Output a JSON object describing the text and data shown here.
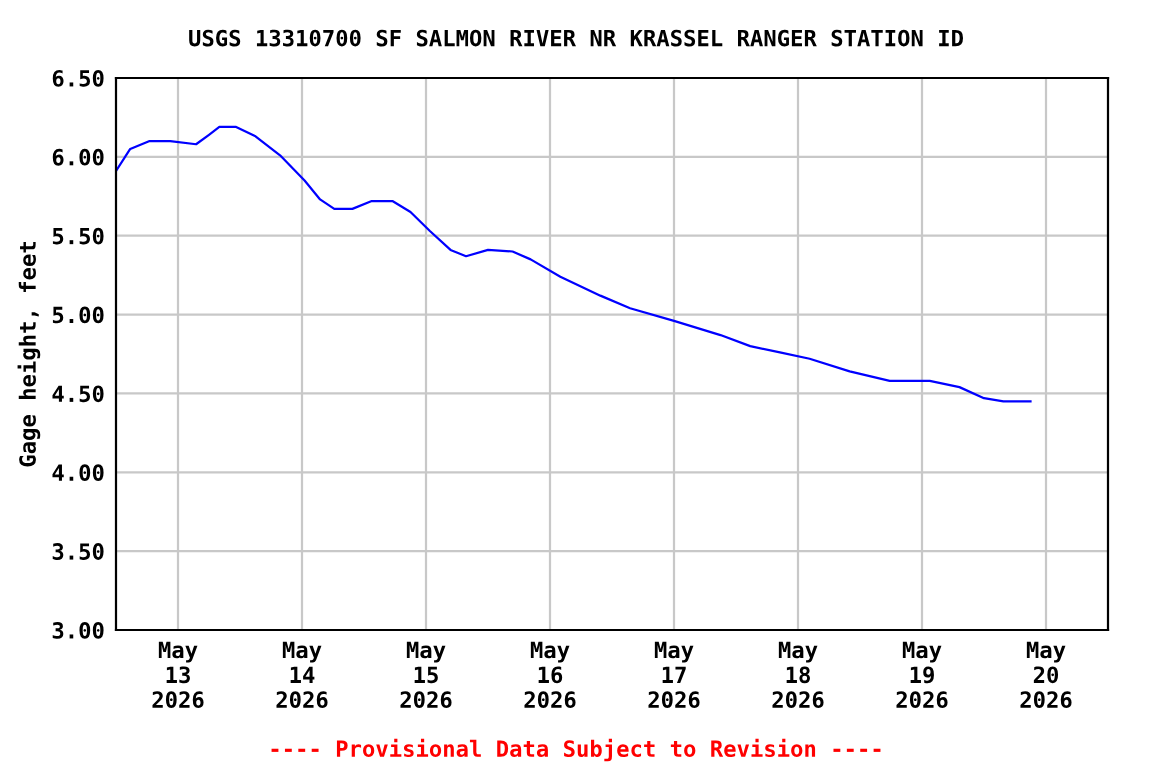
{
  "chart_data": {
    "type": "line",
    "title": "USGS 13310700 SF SALMON RIVER NR KRASSEL RANGER STATION ID",
    "ylabel": "Gage height, feet",
    "annotations": [
      "---- Provisional Data Subject to Revision ----"
    ],
    "x": [
      "2026-05-12T12:00",
      "2026-05-12T14:45",
      "2026-05-12T18:30",
      "2026-05-12T22:30",
      "2026-05-13T03:30",
      "2026-05-13T06:00",
      "2026-05-13T08:00",
      "2026-05-13T11:15",
      "2026-05-13T15:00",
      "2026-05-13T19:45",
      "2026-05-14T00:30",
      "2026-05-14T03:30",
      "2026-05-14T06:15",
      "2026-05-14T09:45",
      "2026-05-14T13:30",
      "2026-05-14T17:30",
      "2026-05-14T21:00",
      "2026-05-15T00:45",
      "2026-05-15T04:45",
      "2026-05-15T07:45",
      "2026-05-15T12:00",
      "2026-05-15T16:45",
      "2026-05-15T20:15",
      "2026-05-16T02:00",
      "2026-05-16T09:45",
      "2026-05-16T15:30",
      "2026-05-17T00:00",
      "2026-05-17T09:00",
      "2026-05-17T14:45",
      "2026-05-17T20:30",
      "2026-05-18T02:15",
      "2026-05-18T10:00",
      "2026-05-18T17:45",
      "2026-05-19T01:30",
      "2026-05-19T07:15",
      "2026-05-19T12:00",
      "2026-05-19T15:45",
      "2026-05-19T21:00"
    ],
    "series": [
      {
        "color": "#0000ff",
        "values": [
          5.91,
          6.05,
          6.1,
          6.1,
          6.08,
          6.14,
          6.19,
          6.19,
          6.13,
          6.01,
          5.85,
          5.73,
          5.67,
          5.67,
          5.72,
          5.72,
          5.65,
          5.53,
          5.41,
          5.37,
          5.41,
          5.4,
          5.35,
          5.24,
          5.12,
          5.04,
          4.96,
          4.87,
          4.8,
          4.76,
          4.72,
          4.64,
          4.58,
          4.58,
          4.54,
          4.47,
          4.45,
          4.45
        ]
      }
    ],
    "xlim": [
      "2026-05-12T12:00",
      "2026-05-20T12:00"
    ],
    "xticks": [
      {
        "value": "2026-05-13",
        "label": "May\n13\n2026"
      },
      {
        "value": "2026-05-14",
        "label": "May\n14\n2026"
      },
      {
        "value": "2026-05-15",
        "label": "May\n15\n2026"
      },
      {
        "value": "2026-05-16",
        "label": "May\n16\n2026"
      },
      {
        "value": "2026-05-17",
        "label": "May\n17\n2026"
      },
      {
        "value": "2026-05-18",
        "label": "May\n18\n2026"
      },
      {
        "value": "2026-05-19",
        "label": "May\n19\n2026"
      },
      {
        "value": "2026-05-20",
        "label": "May\n20\n2026"
      }
    ],
    "ylim": [
      3.0,
      6.5
    ],
    "yticks": [
      {
        "value": 3.0,
        "label": "3.00"
      },
      {
        "value": 3.5,
        "label": "3.50"
      },
      {
        "value": 4.0,
        "label": "4.00"
      },
      {
        "value": 4.5,
        "label": "4.50"
      },
      {
        "value": 5.0,
        "label": "5.00"
      },
      {
        "value": 5.5,
        "label": "5.50"
      },
      {
        "value": 6.0,
        "label": "6.00"
      },
      {
        "value": 6.5,
        "label": "6.50"
      }
    ],
    "grid": true
  }
}
